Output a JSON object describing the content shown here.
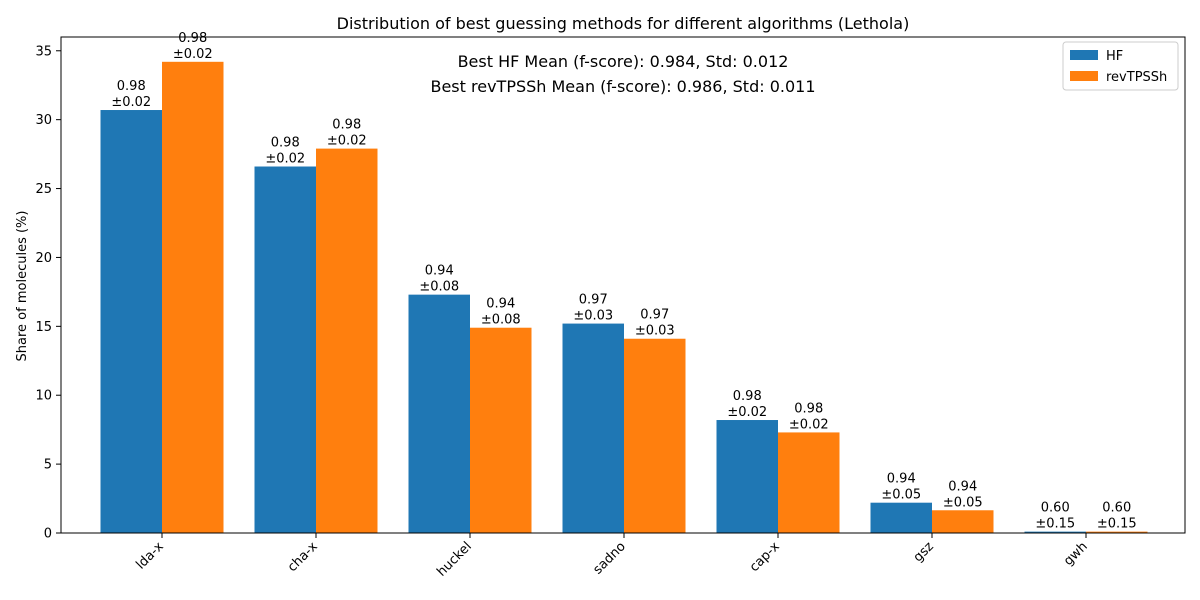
{
  "chart_data": {
    "type": "bar",
    "title": "Distribution of best guessing methods for different algorithms (Lethola)",
    "xlabel": "",
    "ylabel": "Share of molecules (%)",
    "ylim": [
      0,
      36
    ],
    "yticks": [
      0,
      5,
      10,
      15,
      20,
      25,
      30,
      35
    ],
    "grid": false,
    "legend_position": "top-right",
    "categories": [
      "lda-x",
      "cha-x",
      "huckel",
      "sadno",
      "cap-x",
      "gsz",
      "gwh"
    ],
    "series": [
      {
        "name": "HF",
        "color": "#1f77b4",
        "values": [
          30.7,
          26.6,
          17.3,
          15.2,
          8.2,
          2.2,
          0.1
        ],
        "labels": [
          [
            "0.98",
            "±0.02"
          ],
          [
            "0.98",
            "±0.02"
          ],
          [
            "0.94",
            "±0.08"
          ],
          [
            "0.97",
            "±0.03"
          ],
          [
            "0.98",
            "±0.02"
          ],
          [
            "0.94",
            "±0.05"
          ],
          [
            "0.60",
            "±0.15"
          ]
        ]
      },
      {
        "name": "revTPSSh",
        "color": "#ff7f0e",
        "values": [
          34.2,
          27.9,
          14.9,
          14.1,
          7.3,
          1.65,
          0.1
        ],
        "labels": [
          [
            "0.98",
            "±0.02"
          ],
          [
            "0.98",
            "±0.02"
          ],
          [
            "0.94",
            "±0.08"
          ],
          [
            "0.97",
            "±0.03"
          ],
          [
            "0.98",
            "±0.02"
          ],
          [
            "0.94",
            "±0.05"
          ],
          [
            "0.60",
            "±0.15"
          ]
        ]
      }
    ],
    "annotations": [
      "Best HF Mean (f-score): 0.984, Std: 0.012",
      "Best revTPSSh Mean (f-score): 0.986, Std: 0.011"
    ]
  }
}
